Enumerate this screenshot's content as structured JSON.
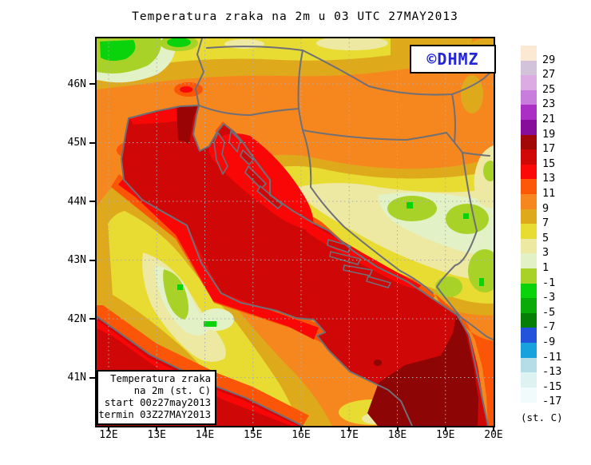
{
  "title": "Temperatura zraka na 2m u 03 UTC 27MAY2013",
  "watermark": {
    "text": "©DHMZ",
    "color": "#2323d7"
  },
  "info_box": {
    "lines": [
      "Temperatura zraka",
      "na 2m (st. C)",
      "start 00z27may2013",
      "termin 03Z27MAY2013"
    ]
  },
  "legend": {
    "unit": "(st. C)",
    "entries": [
      {
        "label": "29",
        "color": "#fce9d4"
      },
      {
        "label": "27",
        "color": "#d3c3da"
      },
      {
        "label": "25",
        "color": "#dcabe4"
      },
      {
        "label": "23",
        "color": "#c87ddc"
      },
      {
        "label": "21",
        "color": "#ab2fc4"
      },
      {
        "label": "19",
        "color": "#870d9b"
      },
      {
        "label": "17",
        "color": "#a30808"
      },
      {
        "label": "15",
        "color": "#d10808"
      },
      {
        "label": "13",
        "color": "#fb0909"
      },
      {
        "label": "11",
        "color": "#fc5808"
      },
      {
        "label": "9",
        "color": "#f6871f"
      },
      {
        "label": "7",
        "color": "#dfa91c"
      },
      {
        "label": "5",
        "color": "#e8dc33"
      },
      {
        "label": "3",
        "color": "#ede8a2"
      },
      {
        "label": "1",
        "color": "#e2f1c6"
      },
      {
        "label": "-1",
        "color": "#a8d228"
      },
      {
        "label": "-3",
        "color": "#0bd30b"
      },
      {
        "label": "-5",
        "color": "#09ab09"
      },
      {
        "label": "-7",
        "color": "#067f06"
      },
      {
        "label": "-9",
        "color": "#2153dc"
      },
      {
        "label": "-11",
        "color": "#17a2dd"
      },
      {
        "label": "-13",
        "color": "#b5dde8"
      },
      {
        "label": "-15",
        "color": "#def2f2"
      },
      {
        "label": "-17",
        "color": "#f2fbfb"
      }
    ]
  },
  "axes": {
    "lat": [
      "46N",
      "45N",
      "44N",
      "43N",
      "42N",
      "41N"
    ],
    "lon": [
      "12E",
      "13E",
      "14E",
      "15E",
      "16E",
      "17E",
      "18E",
      "19E",
      "20E"
    ]
  },
  "map_colors": {
    "sea_base": "#cf0707",
    "sea_warm": "#8d0505",
    "coastline": "#6f7077",
    "gridline": "#a8aeb6"
  }
}
